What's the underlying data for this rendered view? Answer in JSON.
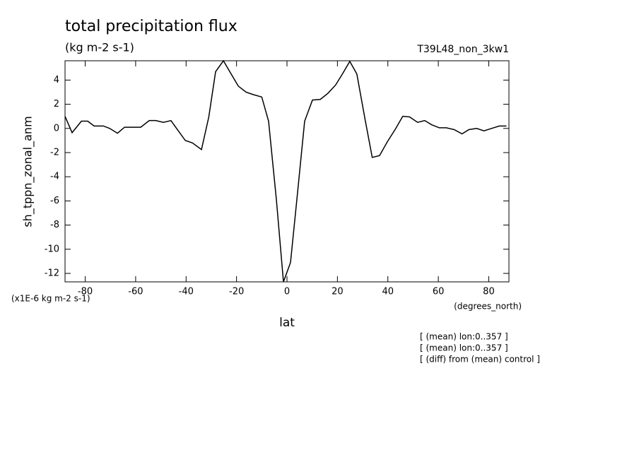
{
  "chart_data": {
    "type": "line",
    "title": "total precipitation flux",
    "subtitle": "(kg m-2 s-1)",
    "dataset": "T39L48_non_3kw1",
    "y_label": "sh_tppn_zonal_anm",
    "y_units": "(x1E-6 kg m-2 s-1)",
    "x_label": "lat",
    "x_units": "(degrees_north)",
    "annotations": [
      "[ (mean) lon:0..357 ]",
      "[ (mean) lon:0..357 ]",
      "[ (diff) from (mean) control ]"
    ],
    "x": [
      -88,
      -85.2,
      -81.5,
      -79,
      -76.5,
      -72.8,
      -70.3,
      -67.2,
      -64.4,
      -61.3,
      -58,
      -54.6,
      -52,
      -49,
      -46,
      -43.1,
      -40.3,
      -37.5,
      -33.9,
      -31,
      -28.3,
      -25.2,
      -22.4,
      -19.3,
      -16.2,
      -13.4,
      -10,
      -7.3,
      -4.2,
      -1.4,
      1.4,
      4.2,
      7,
      10.1,
      13.2,
      16.2,
      19.3,
      22.1,
      24.9,
      27.7,
      31,
      33.8,
      36.7,
      39.8,
      43,
      45.9,
      48.6,
      51.8,
      54.6,
      57.4,
      60.4,
      63.2,
      66.3,
      69.4,
      72.1,
      75.2,
      78.1,
      81.1,
      84.2,
      87
    ],
    "series": [
      {
        "name": "sh_tppn_zonal_anm",
        "color": "#000000",
        "values": [
          1.0,
          -0.35,
          0.6,
          0.6,
          0.2,
          0.2,
          0,
          -0.4,
          0.1,
          0.1,
          0.1,
          0.65,
          0.65,
          0.5,
          0.65,
          -0.2,
          -1.0,
          -1.2,
          -1.75,
          0.95,
          4.7,
          5.6,
          4.6,
          3.5,
          3.0,
          2.8,
          2.6,
          0.6,
          -5.9,
          -12.7,
          -11.1,
          -5.3,
          0.6,
          2.35,
          2.4,
          2.9,
          3.6,
          4.55,
          5.55,
          4.5,
          0.7,
          -2.4,
          -2.25,
          -1.1,
          -0.05,
          1.0,
          0.95,
          0.5,
          0.65,
          0.3,
          0.05,
          0.05,
          -0.1,
          -0.45,
          -0.1,
          0,
          -0.2,
          0,
          0.2,
          0.2
        ]
      }
    ],
    "xlim": [
      -88,
      88
    ],
    "ylim": [
      -12.7,
      5.6
    ],
    "xticks": [
      -80,
      -60,
      -40,
      -20,
      0,
      20,
      40,
      60,
      80
    ],
    "yticks": [
      -12,
      -10,
      -8,
      -6,
      -4,
      -2,
      0,
      2,
      4
    ]
  }
}
